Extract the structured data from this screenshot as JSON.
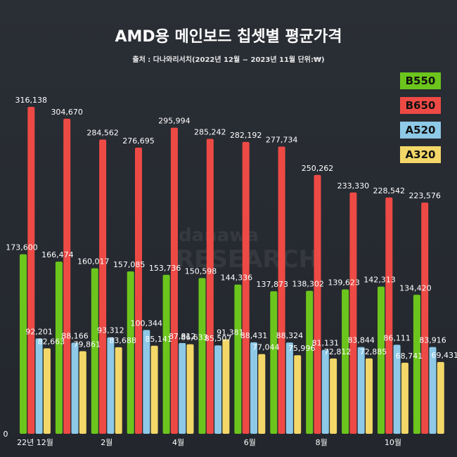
{
  "header": {
    "title": "AMD용 메인보드 칩셋별 평균가격",
    "subtitle": "출처 : 다나와리서치(2022년 12월 ~ 2023년 11월 단위:₩)"
  },
  "watermark": {
    "line1": "danawa",
    "line2": "RESEARCH"
  },
  "colors": {
    "B550": "#6cc51c",
    "B650": "#ee4a45",
    "A520": "#8ec9e8",
    "A320": "#f3d768"
  },
  "chart_data": {
    "type": "bar",
    "title": "AMD용 메인보드 칩셋별 평균가격",
    "subtitle": "출처 : 다나와리서치(2022년 12월 ~ 2023년 11월 단위:₩)",
    "categories": [
      "22년 12월",
      "",
      "2월",
      "",
      "4월",
      "",
      "6월",
      "",
      "8월",
      "",
      "10월",
      ""
    ],
    "y_axis_label": "0",
    "ylim": [
      0,
      340000
    ],
    "grid": false,
    "legend_position": "right",
    "series": [
      {
        "name": "B550",
        "values": [
          173600,
          166474,
          160017,
          157085,
          153736,
          150598,
          144336,
          137873,
          138302,
          139623,
          142313,
          134420
        ]
      },
      {
        "name": "B650",
        "values": [
          316138,
          304670,
          284562,
          276695,
          295994,
          285242,
          282192,
          277734,
          250262,
          233330,
          228542,
          223576
        ]
      },
      {
        "name": "A520",
        "values": [
          92201,
          88166,
          93312,
          100344,
          87812,
          85507,
          88431,
          88324,
          81131,
          83844,
          86111,
          83916
        ]
      },
      {
        "name": "A320",
        "values": [
          82663,
          79861,
          83688,
          85141,
          86633,
          91381,
          77044,
          75996,
          72812,
          72885,
          68741,
          69431
        ]
      }
    ]
  }
}
